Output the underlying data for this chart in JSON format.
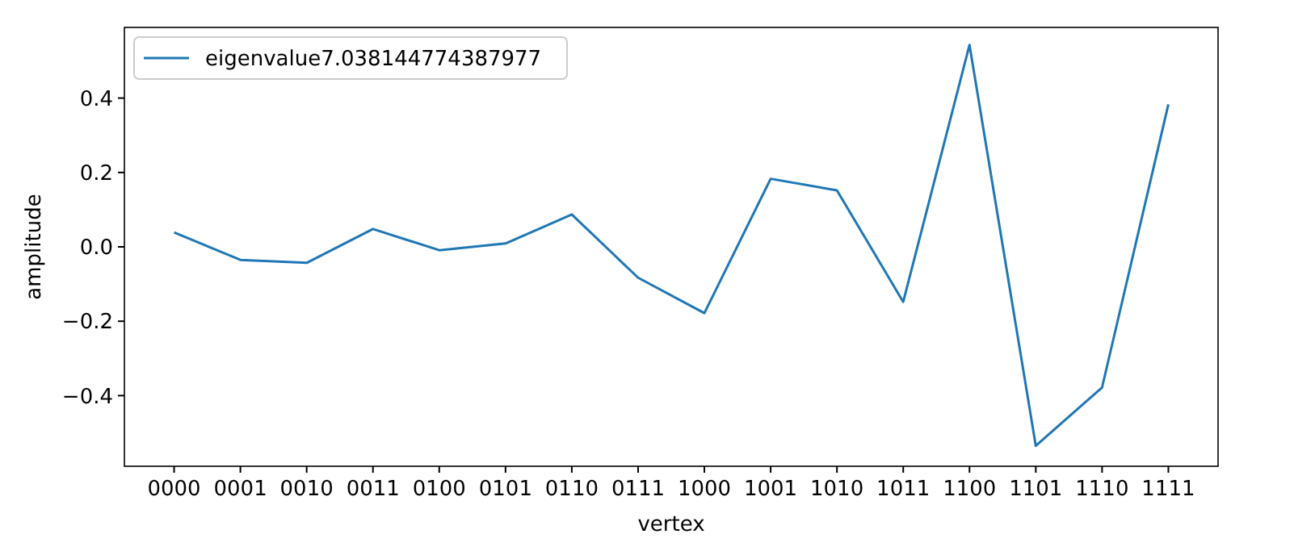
{
  "chart_data": {
    "type": "line",
    "xlabel": "vertex",
    "ylabel": "amplitude",
    "categories": [
      "0000",
      "0001",
      "0010",
      "0011",
      "0100",
      "0101",
      "0110",
      "0111",
      "1000",
      "1001",
      "1010",
      "1011",
      "1100",
      "1101",
      "1110",
      "1111"
    ],
    "series": [
      {
        "name": "eigenvalue7.038144774387977",
        "color": "#1f77b4",
        "values": [
          0.039,
          -0.035,
          -0.043,
          0.048,
          -0.009,
          0.009,
          0.087,
          -0.083,
          -0.178,
          0.183,
          0.152,
          -0.148,
          0.543,
          -0.535,
          -0.378,
          0.383
        ]
      }
    ],
    "ylim": [
      -0.59,
      0.59
    ],
    "yticks": [
      {
        "value": -0.4,
        "label": "−0.4"
      },
      {
        "value": -0.2,
        "label": "−0.2"
      },
      {
        "value": 0,
        "label": "0.0"
      },
      {
        "value": 0.2,
        "label": "0.2"
      },
      {
        "value": 0.4,
        "label": "0.4"
      }
    ],
    "legend": "top left",
    "grid": false,
    "marker": "none",
    "line_style": "solid"
  }
}
